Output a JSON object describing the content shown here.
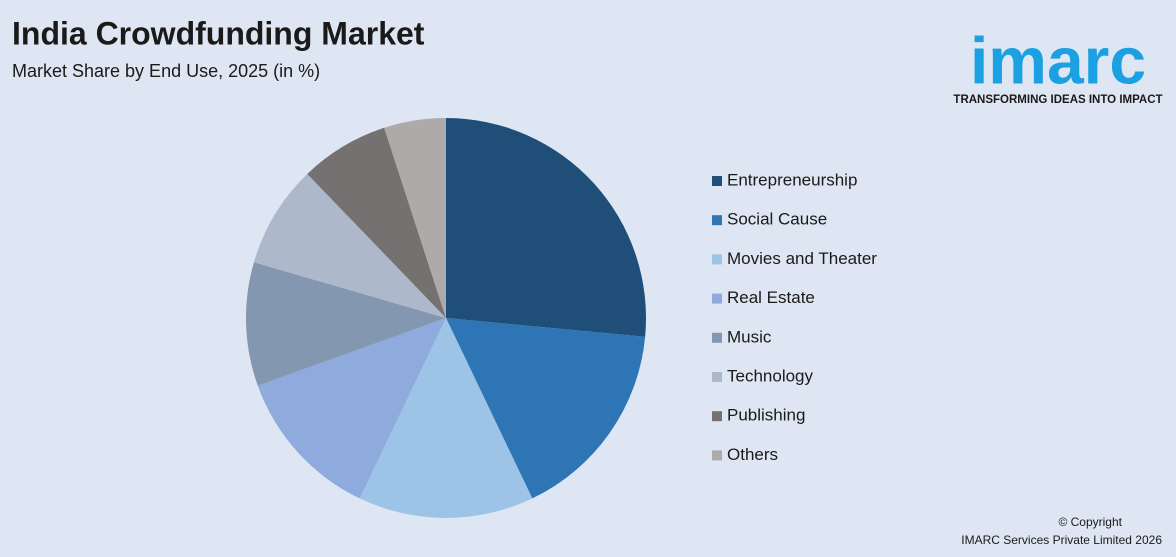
{
  "chart_data": {
    "type": "pie",
    "title": "India Crowdfunding Market",
    "subtitle": "Market Share by End Use, 2025 (in %)",
    "categories": [
      "Entrepreneurship",
      "Social Cause",
      "Movies and Theater",
      "Real Estate",
      "Music",
      "Technology",
      "Publishing",
      "Others"
    ],
    "values": [
      26.5,
      16.4,
      14.2,
      12.4,
      10.0,
      8.3,
      7.2,
      5.0
    ],
    "colors": [
      "#1f4e79",
      "#2e75b6",
      "#9dc3e6",
      "#8faadc",
      "#8497b0",
      "#adb9ca",
      "#767171",
      "#aeaaaa"
    ],
    "legend": "right"
  },
  "logo": {
    "name": "imarc",
    "tagline": "TRANSFORMING IDEAS INTO IMPACT"
  },
  "footer": {
    "copyright": "© Copyright",
    "company": "IMARC Services Private Limited 2026"
  }
}
